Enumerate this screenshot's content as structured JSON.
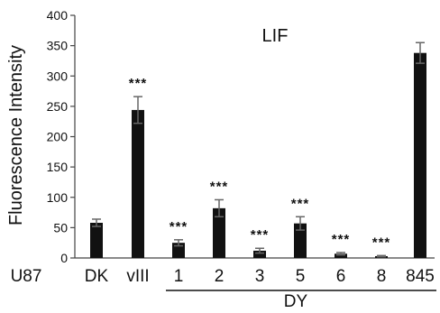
{
  "chart_data": {
    "type": "bar",
    "title": "LIF",
    "ylabel": "Fluorescence Intensity",
    "ylim": [
      0,
      400
    ],
    "yticks": [
      0,
      50,
      100,
      150,
      200,
      250,
      300,
      350,
      400
    ],
    "row_label": "U87",
    "group_label": "DY",
    "grid": false,
    "categories": [
      "DK",
      "vIII",
      "1",
      "2",
      "3",
      "5",
      "6",
      "8",
      "845"
    ],
    "values": [
      58,
      244,
      25,
      82,
      12,
      57,
      7,
      3,
      338
    ],
    "errors": [
      6,
      22,
      5,
      14,
      4,
      11,
      2,
      1,
      17
    ],
    "significance": [
      "",
      "***",
      "***",
      "***",
      "***",
      "***",
      "***",
      "***",
      ""
    ],
    "bar_color": "#111111"
  }
}
